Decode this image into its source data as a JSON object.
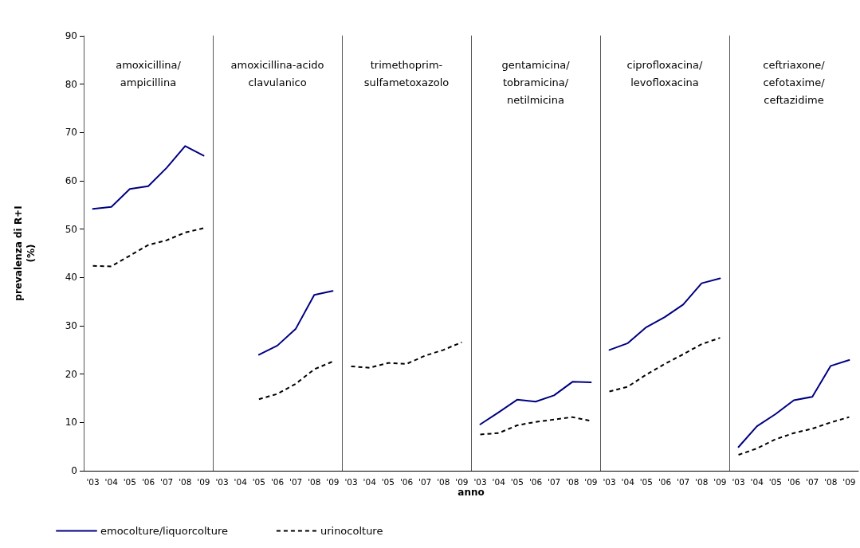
{
  "chart_data": [
    {
      "type": "line",
      "ylabel": "prevalenza di R+I\n(%)",
      "categories": [
        "'03",
        "'04",
        "'05",
        "'06",
        "'07",
        "'08",
        "'09"
      ],
      "ylim": [
        0,
        90
      ],
      "yticks": [
        0,
        10,
        20,
        30,
        40,
        50,
        60,
        70,
        80,
        90
      ],
      "grid": false,
      "legend": "bottom",
      "marker": "none",
      "annotations": [
        "amoxicillina/\nampicillina"
      ],
      "series": [
        {
          "name": "emocolture/liquorcolture",
          "color": "#000080",
          "line_style": "solid",
          "values": [
            54.2,
            54.6,
            58.3,
            58.9,
            62.7,
            67.2,
            65.2
          ]
        },
        {
          "name": "urinocolture",
          "color": "#000000",
          "line_style": "dashed",
          "values": [
            42.4,
            42.3,
            44.5,
            46.7,
            47.7,
            49.3,
            50.2
          ]
        }
      ]
    },
    {
      "type": "line",
      "categories": [
        "'03",
        "'04",
        "'05",
        "'06",
        "'07",
        "'08",
        "'09"
      ],
      "ylim": [
        0,
        90
      ],
      "yticks": [
        0,
        10,
        20,
        30,
        40,
        50,
        60,
        70,
        80,
        90
      ],
      "tick_labels": "x",
      "grid": false,
      "marker": "none",
      "annotations": [
        "amoxicillina-acido\nclavulanico"
      ],
      "series": [
        {
          "color": "#000080",
          "line_style": "solid",
          "values": [
            null,
            null,
            24.0,
            25.9,
            29.4,
            36.4,
            37.2
          ]
        },
        {
          "color": "#000000",
          "line_style": "dashed",
          "values": [
            null,
            null,
            14.8,
            15.9,
            18.0,
            21.0,
            22.6
          ]
        }
      ]
    },
    {
      "type": "line",
      "categories": [
        "'03",
        "'04",
        "'05",
        "'06",
        "'07",
        "'08",
        "'09"
      ],
      "ylim": [
        0,
        90
      ],
      "yticks": [
        0,
        10,
        20,
        30,
        40,
        50,
        60,
        70,
        80,
        90
      ],
      "tick_labels": "x",
      "grid": false,
      "marker": "none",
      "annotations": [
        "trimethoprim-\nsulfametoxazolo"
      ],
      "series": [
        {
          "color": "#000000",
          "line_style": "dashed",
          "values": [
            21.6,
            21.3,
            22.3,
            22.1,
            23.8,
            25.0,
            26.6
          ]
        }
      ]
    },
    {
      "type": "line",
      "categories": [
        "'03",
        "'04",
        "'05",
        "'06",
        "'07",
        "'08",
        "'09"
      ],
      "ylim": [
        0,
        90
      ],
      "yticks": [
        0,
        10,
        20,
        30,
        40,
        50,
        60,
        70,
        80,
        90
      ],
      "xlabel": "anno",
      "tick_labels": "x",
      "grid": false,
      "marker": "none",
      "annotations": [
        "gentamicina/\ntobramicina/\nnetilmicina"
      ],
      "series": [
        {
          "color": "#000080",
          "line_style": "solid",
          "values": [
            9.6,
            12.1,
            14.7,
            14.3,
            15.6,
            18.4,
            18.3
          ]
        },
        {
          "color": "#000000",
          "line_style": "dashed",
          "values": [
            7.5,
            7.8,
            9.4,
            10.1,
            10.6,
            11.1,
            10.3
          ]
        }
      ]
    },
    {
      "type": "line",
      "categories": [
        "'03",
        "'04",
        "'05",
        "'06",
        "'07",
        "'08",
        "'09"
      ],
      "ylim": [
        0,
        90
      ],
      "yticks": [
        0,
        10,
        20,
        30,
        40,
        50,
        60,
        70,
        80,
        90
      ],
      "tick_labels": "x",
      "grid": false,
      "marker": "none",
      "annotations": [
        "ciprofloxacina/\nlevofloxacina"
      ],
      "series": [
        {
          "color": "#000080",
          "line_style": "solid",
          "values": [
            25.0,
            26.4,
            29.7,
            31.8,
            34.4,
            38.8,
            39.8
          ]
        },
        {
          "color": "#000000",
          "line_style": "dashed",
          "values": [
            16.4,
            17.4,
            19.9,
            22.1,
            24.1,
            26.2,
            27.5
          ]
        }
      ]
    },
    {
      "type": "line",
      "categories": [
        "'03",
        "'04",
        "'05",
        "'06",
        "'07",
        "'08",
        "'09"
      ],
      "ylim": [
        0,
        90
      ],
      "yticks": [
        0,
        10,
        20,
        30,
        40,
        50,
        60,
        70,
        80,
        90
      ],
      "tick_labels": "x",
      "grid": false,
      "marker": "none",
      "annotations": [
        "ceftriaxone/\ncefotaxime/\nceftazidime"
      ],
      "series": [
        {
          "color": "#000080",
          "line_style": "solid",
          "values": [
            4.9,
            9.2,
            11.7,
            14.6,
            15.3,
            21.7,
            22.9
          ]
        },
        {
          "color": "#000000",
          "line_style": "dashed",
          "values": [
            3.3,
            4.6,
            6.5,
            7.8,
            8.7,
            10.0,
            11.1
          ]
        }
      ]
    }
  ]
}
